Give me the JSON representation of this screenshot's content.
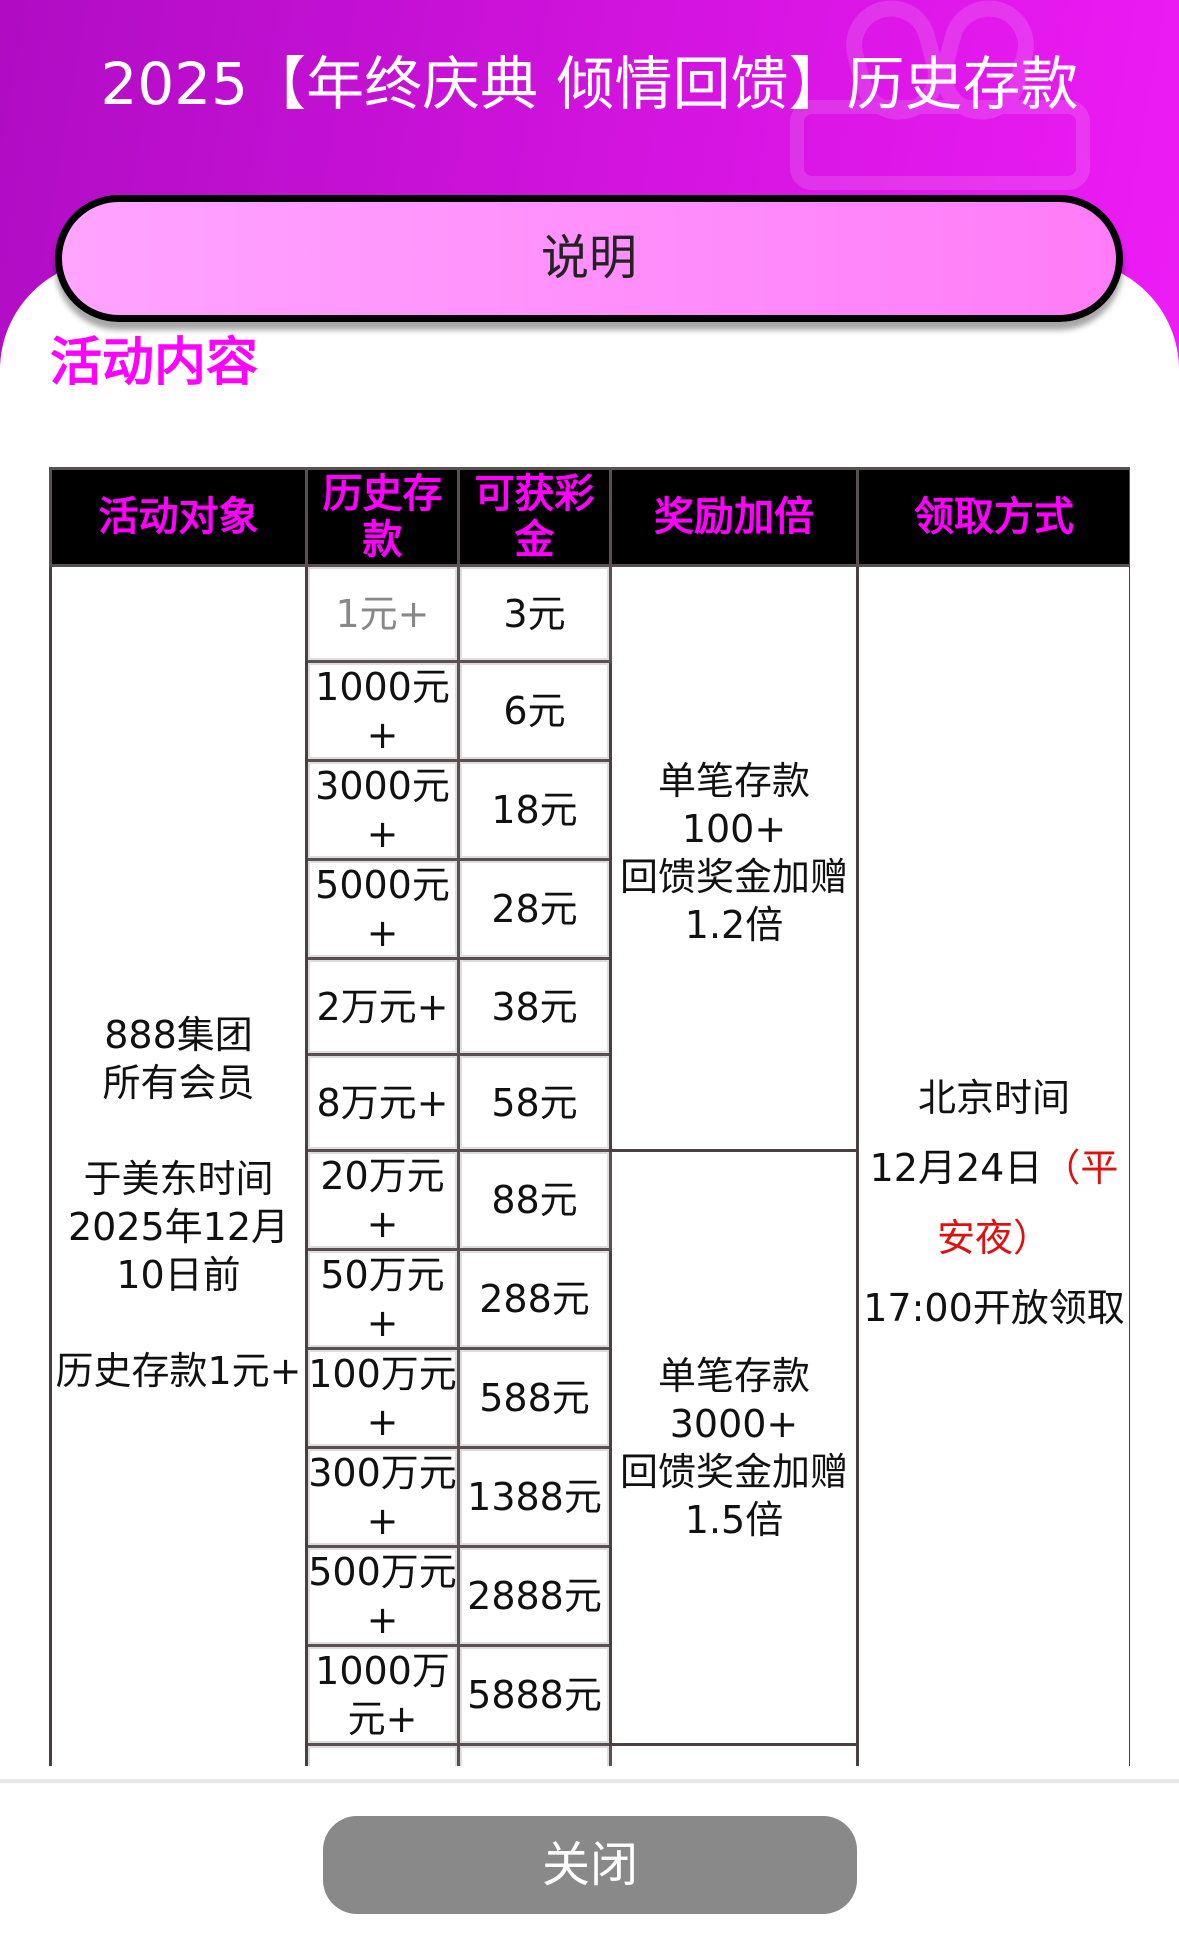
{
  "header": {
    "title": "2025【年终庆典 倾情回馈】历史存款"
  },
  "explain_button": "说明",
  "section_title": "活动内容",
  "colors": {
    "accent": "#ff00ff",
    "hero_start": "#b00cc4",
    "hero_end": "#ee1cf6",
    "button_pink": "#ff8cfa",
    "close_grey": "#898989",
    "highlight_red": "#e01010"
  },
  "table": {
    "headers": [
      "活动对象",
      "历史存款",
      "可获彩金",
      "奖励加倍",
      "领取方式"
    ],
    "target": {
      "line1": "888集团",
      "line2": "所有会员",
      "line3": "于美东时间",
      "line4": "2025年12月",
      "line5": "10日前",
      "line6": "历史存款1元+"
    },
    "rows": [
      {
        "deposit": "1元+",
        "prize": "3元"
      },
      {
        "deposit": "1000元+",
        "prize": "6元"
      },
      {
        "deposit": "3000元+",
        "prize": "18元"
      },
      {
        "deposit": "5000元+",
        "prize": "28元"
      },
      {
        "deposit": "2万元+",
        "prize": "38元"
      },
      {
        "deposit": "8万元+",
        "prize": "58元"
      },
      {
        "deposit": "20万元+",
        "prize": "88元"
      },
      {
        "deposit": "50万元+",
        "prize": "288元"
      },
      {
        "deposit": "100万元+",
        "prize": "588元"
      },
      {
        "deposit": "300万元+",
        "prize": "1388元"
      },
      {
        "deposit": "500万元+",
        "prize": "2888元"
      },
      {
        "deposit": "1000万元+",
        "prize": "5888元"
      }
    ],
    "bonus": [
      {
        "line1": "单笔存款",
        "line2": "100+",
        "line3": "回馈奖金加赠1.2倍"
      },
      {
        "line1": "单笔存款",
        "line2": "3000+",
        "line3": "回馈奖金加赠1.5倍"
      }
    ],
    "claim": {
      "line1": "北京时间",
      "line2a": "12月24日",
      "line2b": "（平安夜）",
      "line3": "17:00开放领取"
    }
  },
  "close_button": "关闭"
}
